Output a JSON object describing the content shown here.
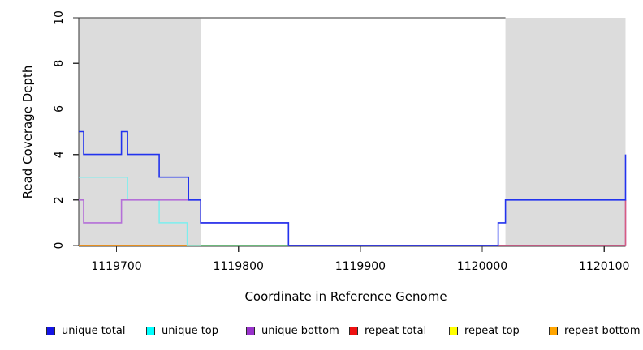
{
  "figure": {
    "x_axis_title": "Coordinate in Reference Genome",
    "y_axis_title": "Read Coverage Depth"
  },
  "legend": {
    "items": [
      {
        "label": "unique total",
        "color": "#1414e6"
      },
      {
        "label": "unique top",
        "color": "#00ffff"
      },
      {
        "label": "unique bottom",
        "color": "#9932cc"
      },
      {
        "label": "repeat total",
        "color": "#ee1111"
      },
      {
        "label": "repeat top",
        "color": "#ffff00"
      },
      {
        "label": "repeat bottom",
        "color": "#ffa500"
      }
    ]
  },
  "chart_data": {
    "type": "line",
    "title": "",
    "xlabel": "Coordinate in Reference Genome",
    "ylabel": "Read Coverage Depth",
    "xlim": [
      1119669,
      1120117.5
    ],
    "ylim": [
      0,
      10
    ],
    "grid": false,
    "legend_position": "bottom",
    "x_ticks": [
      {
        "value": 1119700,
        "label": "1119700"
      },
      {
        "value": 1119800,
        "label": "1119800"
      },
      {
        "value": 1119900,
        "label": "1119900"
      },
      {
        "value": 1120000,
        "label": "1120000"
      },
      {
        "value": 1120100,
        "label": "1120100"
      }
    ],
    "y_ticks": [
      {
        "value": 0,
        "label": "0"
      },
      {
        "value": 2,
        "label": "2"
      },
      {
        "value": 4,
        "label": "4"
      },
      {
        "value": 6,
        "label": "6"
      },
      {
        "value": 8,
        "label": "8"
      },
      {
        "value": 10,
        "label": "10"
      }
    ],
    "repeat_regions": [
      {
        "start": 1119669,
        "end": 1119769
      },
      {
        "start": 1120019,
        "end": 1120117.5
      }
    ],
    "region_fill": "#dcdcdc",
    "series": [
      {
        "name": "repeat bottom",
        "line_color": "#ff9d1e",
        "line_width": 1.8,
        "vertices": [
          [
            1119669,
            0
          ],
          [
            1119769,
            0
          ]
        ]
      },
      {
        "name": "unique top",
        "line_color": "#7ceeee",
        "line_width": 1.5,
        "vertices": [
          [
            1119669,
            3
          ],
          [
            1119709,
            3
          ],
          [
            1119709,
            2
          ],
          [
            1119735,
            2
          ],
          [
            1119735,
            1
          ],
          [
            1119758,
            1
          ],
          [
            1119758,
            0
          ],
          [
            1119841,
            0
          ]
        ]
      },
      {
        "name": "repeat top",
        "line_color": "#72c472",
        "line_width": 1.6,
        "vertices": [
          [
            1119769,
            0
          ],
          [
            1119841,
            0
          ]
        ]
      },
      {
        "name": "unique bottom",
        "line_color": "#b46fd8",
        "line_width": 1.6,
        "vertices": [
          [
            1119669,
            2
          ],
          [
            1119673,
            2
          ],
          [
            1119673,
            1
          ],
          [
            1119704,
            1
          ],
          [
            1119704,
            2
          ],
          [
            1119769,
            2
          ],
          [
            1119769,
            1
          ],
          [
            1119841,
            1
          ],
          [
            1119841,
            0
          ],
          [
            1120117.5,
            0
          ],
          [
            1120117.5,
            2
          ]
        ]
      },
      {
        "name": "repeat total",
        "line_color": "#d85c80",
        "line_width": 1.5,
        "vertices": [
          [
            1120013,
            0
          ],
          [
            1120117.5,
            0
          ],
          [
            1120117.5,
            2
          ]
        ]
      },
      {
        "name": "unique total",
        "line_color": "#2233ee",
        "line_width": 1.6,
        "vertices": [
          [
            1119669,
            5
          ],
          [
            1119673,
            5
          ],
          [
            1119673,
            4
          ],
          [
            1119704,
            4
          ],
          [
            1119704,
            5
          ],
          [
            1119709,
            5
          ],
          [
            1119709,
            4
          ],
          [
            1119735,
            4
          ],
          [
            1119735,
            3
          ],
          [
            1119759,
            3
          ],
          [
            1119759,
            2
          ],
          [
            1119769,
            2
          ],
          [
            1119769,
            1
          ],
          [
            1119841,
            1
          ],
          [
            1119841,
            0
          ],
          [
            1120013,
            0
          ],
          [
            1120013,
            1
          ],
          [
            1120019,
            1
          ],
          [
            1120019,
            2
          ],
          [
            1120117.5,
            2
          ],
          [
            1120117.5,
            4
          ]
        ]
      }
    ]
  }
}
